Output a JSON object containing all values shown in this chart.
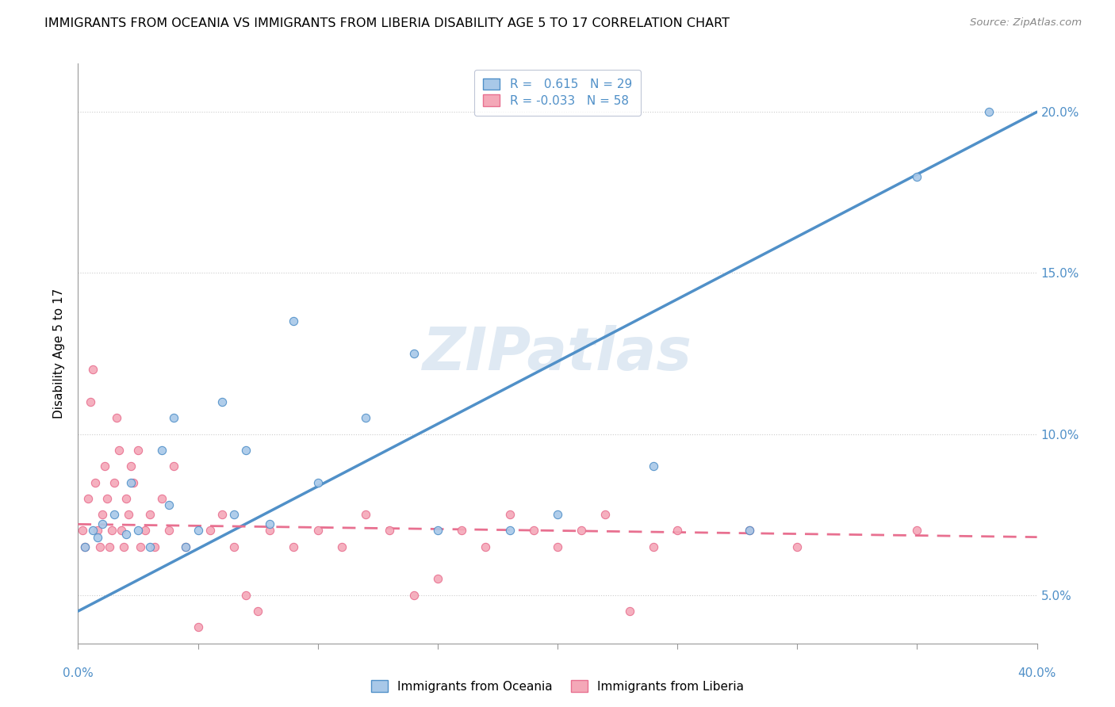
{
  "title": "IMMIGRANTS FROM OCEANIA VS IMMIGRANTS FROM LIBERIA DISABILITY AGE 5 TO 17 CORRELATION CHART",
  "source": "Source: ZipAtlas.com",
  "ylabel": "Disability Age 5 to 17",
  "legend_oceania": "Immigrants from Oceania",
  "legend_liberia": "Immigrants from Liberia",
  "r_oceania": 0.615,
  "n_oceania": 29,
  "r_liberia": -0.033,
  "n_liberia": 58,
  "color_oceania": "#a8c8e8",
  "color_liberia": "#f4a8b8",
  "color_oceania_line": "#5090c8",
  "color_liberia_line": "#e87090",
  "xlim": [
    0.0,
    40.0
  ],
  "ylim": [
    3.5,
    21.5
  ],
  "ytick_positions": [
    5.0,
    10.0,
    15.0,
    20.0
  ],
  "xtick_positions": [
    0,
    5,
    10,
    15,
    20,
    25,
    30,
    35,
    40
  ],
  "oceania_x": [
    0.3,
    0.6,
    0.8,
    1.0,
    1.5,
    2.0,
    2.2,
    2.5,
    3.0,
    3.5,
    3.8,
    4.0,
    4.5,
    5.0,
    6.0,
    6.5,
    7.0,
    8.0,
    9.0,
    10.0,
    12.0,
    14.0,
    15.0,
    18.0,
    20.0,
    24.0,
    28.0,
    35.0,
    38.0
  ],
  "oceania_y": [
    6.5,
    7.0,
    6.8,
    7.2,
    7.5,
    6.9,
    8.5,
    7.0,
    6.5,
    9.5,
    7.8,
    10.5,
    6.5,
    7.0,
    11.0,
    7.5,
    9.5,
    7.2,
    13.5,
    8.5,
    10.5,
    12.5,
    7.0,
    7.0,
    7.5,
    9.0,
    7.0,
    18.0,
    20.0
  ],
  "liberia_x": [
    0.2,
    0.3,
    0.4,
    0.5,
    0.6,
    0.7,
    0.8,
    0.9,
    1.0,
    1.1,
    1.2,
    1.3,
    1.4,
    1.5,
    1.6,
    1.7,
    1.8,
    1.9,
    2.0,
    2.1,
    2.2,
    2.3,
    2.5,
    2.6,
    2.8,
    3.0,
    3.2,
    3.5,
    3.8,
    4.0,
    4.5,
    5.0,
    5.5,
    6.0,
    6.5,
    7.0,
    7.5,
    8.0,
    9.0,
    10.0,
    11.0,
    12.0,
    13.0,
    14.0,
    15.0,
    16.0,
    17.0,
    18.0,
    19.0,
    20.0,
    21.0,
    22.0,
    23.0,
    24.0,
    25.0,
    28.0,
    30.0,
    35.0
  ],
  "liberia_y": [
    7.0,
    6.5,
    8.0,
    11.0,
    12.0,
    8.5,
    7.0,
    6.5,
    7.5,
    9.0,
    8.0,
    6.5,
    7.0,
    8.5,
    10.5,
    9.5,
    7.0,
    6.5,
    8.0,
    7.5,
    9.0,
    8.5,
    9.5,
    6.5,
    7.0,
    7.5,
    6.5,
    8.0,
    7.0,
    9.0,
    6.5,
    4.0,
    7.0,
    7.5,
    6.5,
    5.0,
    4.5,
    7.0,
    6.5,
    7.0,
    6.5,
    7.5,
    7.0,
    5.0,
    5.5,
    7.0,
    6.5,
    7.5,
    7.0,
    6.5,
    7.0,
    7.5,
    4.5,
    6.5,
    7.0,
    7.0,
    6.5,
    7.0
  ],
  "oceania_line_y0": 4.5,
  "oceania_line_y1": 20.0,
  "liberia_line_y0": 7.2,
  "liberia_line_y1": 6.8
}
